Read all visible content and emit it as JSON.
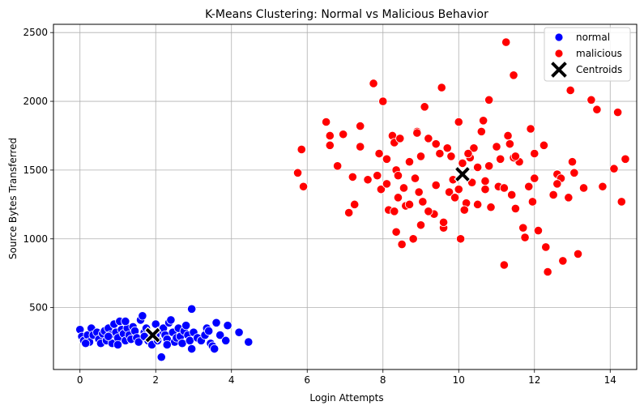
{
  "chart_data": {
    "type": "scatter",
    "title": "K-Means Clustering: Normal vs Malicious Behavior",
    "xlabel": "Login Attempts",
    "ylabel": "Source Bytes Transferred",
    "xlim": [
      -0.7,
      14.7
    ],
    "ylim": [
      50,
      2560
    ],
    "xticks": [
      0,
      2,
      4,
      6,
      8,
      10,
      12,
      14
    ],
    "yticks": [
      500,
      1000,
      1500,
      2000,
      2500
    ],
    "grid": true,
    "legend_position": "top-right",
    "series": [
      {
        "name": "normal",
        "color": "#0000ff",
        "marker": "circle",
        "points": [
          [
            0,
            340
          ],
          [
            0.05,
            290
          ],
          [
            0.1,
            260
          ],
          [
            0.2,
            300
          ],
          [
            0.25,
            250
          ],
          [
            0.3,
            350
          ],
          [
            0.35,
            300
          ],
          [
            0.45,
            320
          ],
          [
            0.5,
            270
          ],
          [
            0.55,
            240
          ],
          [
            0.6,
            310
          ],
          [
            0.65,
            330
          ],
          [
            0.7,
            260
          ],
          [
            0.75,
            350
          ],
          [
            0.8,
            300
          ],
          [
            0.85,
            240
          ],
          [
            0.9,
            380
          ],
          [
            0.95,
            320
          ],
          [
            1.0,
            280
          ],
          [
            1.05,
            400
          ],
          [
            1.1,
            340
          ],
          [
            1.15,
            310
          ],
          [
            1.2,
            260
          ],
          [
            1.25,
            350
          ],
          [
            1.3,
            300
          ],
          [
            1.35,
            270
          ],
          [
            1.4,
            360
          ],
          [
            1.45,
            330
          ],
          [
            1.5,
            280
          ],
          [
            1.55,
            250
          ],
          [
            1.6,
            410
          ],
          [
            1.65,
            440
          ],
          [
            1.7,
            320
          ],
          [
            1.75,
            350
          ],
          [
            1.8,
            260
          ],
          [
            1.85,
            300
          ],
          [
            1.9,
            230
          ],
          [
            2.0,
            380
          ],
          [
            2.05,
            260
          ],
          [
            2.1,
            330
          ],
          [
            2.15,
            140
          ],
          [
            2.2,
            350
          ],
          [
            2.25,
            300
          ],
          [
            2.3,
            270
          ],
          [
            2.35,
            390
          ],
          [
            2.4,
            410
          ],
          [
            2.45,
            320
          ],
          [
            2.5,
            250
          ],
          [
            2.55,
            280
          ],
          [
            2.6,
            350
          ],
          [
            2.65,
            290
          ],
          [
            2.7,
            240
          ],
          [
            2.75,
            330
          ],
          [
            2.8,
            370
          ],
          [
            2.85,
            300
          ],
          [
            2.9,
            260
          ],
          [
            2.95,
            200
          ],
          [
            2.95,
            490
          ],
          [
            3.0,
            320
          ],
          [
            3.1,
            280
          ],
          [
            3.2,
            260
          ],
          [
            3.3,
            300
          ],
          [
            3.35,
            350
          ],
          [
            3.4,
            330
          ],
          [
            3.45,
            240
          ],
          [
            3.5,
            220
          ],
          [
            3.55,
            200
          ],
          [
            3.6,
            390
          ],
          [
            3.7,
            300
          ],
          [
            3.85,
            260
          ],
          [
            3.9,
            370
          ],
          [
            4.2,
            320
          ],
          [
            4.45,
            250
          ],
          [
            0.15,
            240
          ],
          [
            1.0,
            230
          ],
          [
            2.0,
            300
          ],
          [
            1.2,
            400
          ],
          [
            2.3,
            230
          ],
          [
            0.75,
            290
          ],
          [
            1.7,
            290
          ]
        ]
      },
      {
        "name": "malicious",
        "color": "#ff0000",
        "marker": "circle",
        "points": [
          [
            5.75,
            1480
          ],
          [
            5.85,
            1650
          ],
          [
            5.9,
            1380
          ],
          [
            6.5,
            1850
          ],
          [
            6.6,
            1680
          ],
          [
            6.6,
            1750
          ],
          [
            6.8,
            1530
          ],
          [
            6.95,
            1760
          ],
          [
            7.1,
            1190
          ],
          [
            7.2,
            1450
          ],
          [
            7.25,
            1250
          ],
          [
            7.4,
            1670
          ],
          [
            7.4,
            1820
          ],
          [
            7.6,
            1430
          ],
          [
            7.75,
            2130
          ],
          [
            7.9,
            1620
          ],
          [
            7.95,
            1360
          ],
          [
            8.0,
            2000
          ],
          [
            8.1,
            1580
          ],
          [
            8.15,
            1210
          ],
          [
            8.25,
            1750
          ],
          [
            8.3,
            1700
          ],
          [
            8.35,
            1500
          ],
          [
            8.35,
            1050
          ],
          [
            8.4,
            1300
          ],
          [
            8.45,
            1730
          ],
          [
            8.5,
            960
          ],
          [
            8.55,
            1370
          ],
          [
            8.6,
            1240
          ],
          [
            8.7,
            1560
          ],
          [
            8.8,
            1000
          ],
          [
            8.85,
            1440
          ],
          [
            8.9,
            1780
          ],
          [
            8.95,
            1340
          ],
          [
            9.0,
            1100
          ],
          [
            9.05,
            1270
          ],
          [
            9.1,
            1960
          ],
          [
            9.2,
            1730
          ],
          [
            9.35,
            1180
          ],
          [
            9.4,
            1390
          ],
          [
            9.5,
            1620
          ],
          [
            9.55,
            2100
          ],
          [
            9.6,
            1080
          ],
          [
            9.7,
            1660
          ],
          [
            9.75,
            1340
          ],
          [
            9.8,
            1600
          ],
          [
            9.9,
            1300
          ],
          [
            10.0,
            1850
          ],
          [
            10.05,
            1000
          ],
          [
            10.1,
            1550
          ],
          [
            10.2,
            1260
          ],
          [
            10.3,
            1590
          ],
          [
            10.4,
            1660
          ],
          [
            10.5,
            1520
          ],
          [
            10.6,
            1780
          ],
          [
            10.65,
            1860
          ],
          [
            10.7,
            1360
          ],
          [
            10.8,
            2010
          ],
          [
            10.85,
            1230
          ],
          [
            11.0,
            1670
          ],
          [
            11.05,
            1380
          ],
          [
            11.1,
            1580
          ],
          [
            11.2,
            810
          ],
          [
            11.25,
            2430
          ],
          [
            11.3,
            1750
          ],
          [
            11.35,
            1690
          ],
          [
            11.4,
            1320
          ],
          [
            11.45,
            2190
          ],
          [
            11.5,
            1220
          ],
          [
            11.6,
            1560
          ],
          [
            11.7,
            1080
          ],
          [
            11.75,
            1010
          ],
          [
            11.9,
            1800
          ],
          [
            11.95,
            1270
          ],
          [
            12.0,
            1440
          ],
          [
            12.1,
            1060
          ],
          [
            12.25,
            1680
          ],
          [
            12.3,
            940
          ],
          [
            12.35,
            760
          ],
          [
            12.5,
            1320
          ],
          [
            12.6,
            1470
          ],
          [
            12.7,
            1440
          ],
          [
            12.75,
            840
          ],
          [
            12.9,
            1300
          ],
          [
            12.95,
            2080
          ],
          [
            13.05,
            1480
          ],
          [
            13.15,
            890
          ],
          [
            13.3,
            1370
          ],
          [
            13.5,
            2010
          ],
          [
            13.65,
            1940
          ],
          [
            13.8,
            1380
          ],
          [
            14.1,
            1510
          ],
          [
            14.2,
            1920
          ],
          [
            14.3,
            1270
          ],
          [
            14.4,
            1580
          ],
          [
            8.4,
            1460
          ],
          [
            9.2,
            1200
          ],
          [
            9.85,
            1430
          ],
          [
            10.35,
            1410
          ],
          [
            11.45,
            1590
          ],
          [
            8.1,
            1400
          ],
          [
            9.4,
            1690
          ],
          [
            10.15,
            1210
          ],
          [
            10.8,
            1530
          ],
          [
            12.0,
            1620
          ],
          [
            8.7,
            1250
          ],
          [
            9.6,
            1120
          ],
          [
            10.5,
            1250
          ],
          [
            11.2,
            1370
          ],
          [
            12.6,
            1400
          ],
          [
            8.9,
            1770
          ],
          [
            10.0,
            1360
          ],
          [
            11.5,
            1600
          ],
          [
            7.85,
            1460
          ],
          [
            9.0,
            1600
          ],
          [
            10.7,
            1420
          ],
          [
            11.85,
            1380
          ],
          [
            13.0,
            1560
          ],
          [
            8.3,
            1200
          ],
          [
            10.25,
            1620
          ]
        ]
      }
    ],
    "centroids": {
      "name": "Centroids",
      "color": "#000000",
      "marker": "X",
      "points": [
        [
          1.92,
          300
        ],
        [
          10.1,
          1470
        ]
      ]
    }
  }
}
